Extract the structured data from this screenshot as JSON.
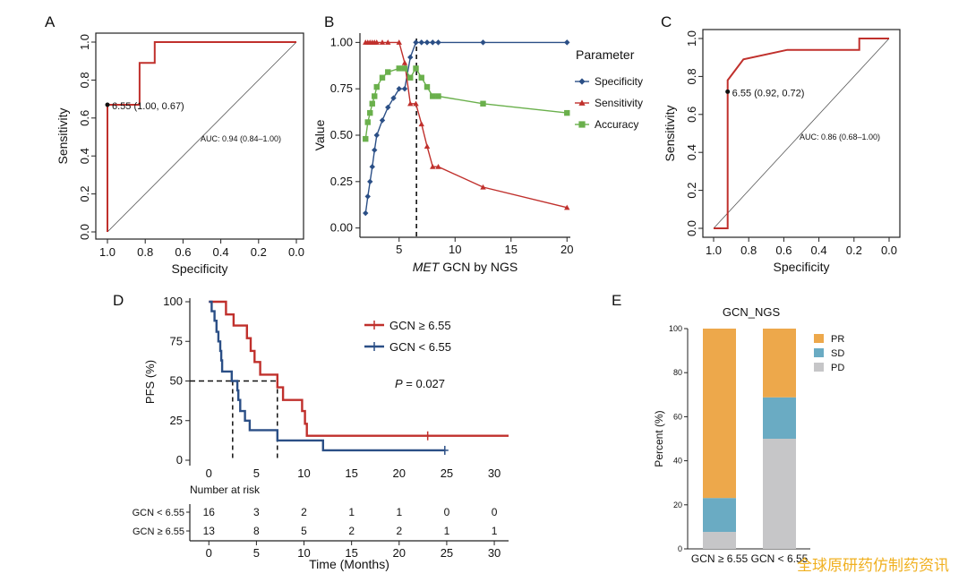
{
  "panel_labels": [
    "A",
    "B",
    "C",
    "D",
    "E"
  ],
  "colors": {
    "red": "#c0302c",
    "blue": "#2b4f86",
    "green": "#6ab04c",
    "pr": "#eda84b",
    "sd": "#6aabc3",
    "pd": "#c6c6c8",
    "risk_blue": "#2f5f9e",
    "risk_red": "#c0302c"
  },
  "watermark": "全球原研药仿制药资讯",
  "chart_data": [
    {
      "panel": "A",
      "type": "line",
      "xlabel": "Specificity",
      "ylabel": "Sensitivity",
      "xlim": [
        1.0,
        0.0
      ],
      "ylim": [
        0.0,
        1.0
      ],
      "xticks": [
        "1.0",
        "0.8",
        "0.6",
        "0.4",
        "0.2",
        "0.0"
      ],
      "yticks": [
        "0.0",
        "0.2",
        "0.4",
        "0.6",
        "0.8",
        "1.0"
      ],
      "roc_points": [
        [
          1.0,
          0.0
        ],
        [
          1.0,
          0.67
        ],
        [
          0.83,
          0.67
        ],
        [
          0.83,
          0.89
        ],
        [
          0.75,
          0.89
        ],
        [
          0.75,
          1.0
        ],
        [
          0.0,
          1.0
        ]
      ],
      "cutoff_point": [
        1.0,
        0.67
      ],
      "cutoff_label": "6.55 (1.00, 0.67)",
      "auc_label": "AUC: 0.94 (0.84–1.00)"
    },
    {
      "panel": "B",
      "type": "line",
      "xlabel_italic": "MET",
      "xlabel_rest": " GCN by NGS",
      "ylabel": "Value",
      "xlim": [
        1.5,
        20.3
      ],
      "ylim": [
        -0.05,
        1.05
      ],
      "xticks": [
        5,
        10,
        15,
        20
      ],
      "yticks": [
        "0.00",
        "0.25",
        "0.50",
        "0.75",
        "1.00"
      ],
      "cutoff_x": 6.55,
      "legend_title": "Parameter",
      "series": [
        {
          "name": "Specificity",
          "x": [
            2.0,
            2.2,
            2.4,
            2.6,
            2.8,
            3.0,
            3.5,
            4.0,
            4.5,
            5.0,
            5.5,
            6.0,
            6.5,
            7.0,
            7.5,
            8.0,
            8.5,
            12.5,
            20.0
          ],
          "y": [
            0.08,
            0.17,
            0.25,
            0.33,
            0.42,
            0.5,
            0.58,
            0.65,
            0.7,
            0.75,
            0.75,
            0.92,
            1.0,
            1.0,
            1.0,
            1.0,
            1.0,
            1.0,
            1.0
          ]
        },
        {
          "name": "Sensitivity",
          "x": [
            2.0,
            2.2,
            2.4,
            2.6,
            2.8,
            3.0,
            3.5,
            4.0,
            5.0,
            5.5,
            6.0,
            6.5,
            7.0,
            7.5,
            8.0,
            8.5,
            12.5,
            20.0
          ],
          "y": [
            1.0,
            1.0,
            1.0,
            1.0,
            1.0,
            1.0,
            1.0,
            1.0,
            1.0,
            0.89,
            0.67,
            0.67,
            0.56,
            0.44,
            0.33,
            0.33,
            0.22,
            0.11
          ]
        },
        {
          "name": "Accuracy",
          "x": [
            2.0,
            2.2,
            2.4,
            2.6,
            2.8,
            3.0,
            3.5,
            4.0,
            5.0,
            5.5,
            6.0,
            6.5,
            7.0,
            7.5,
            8.0,
            8.5,
            12.5,
            20.0
          ],
          "y": [
            0.48,
            0.57,
            0.62,
            0.67,
            0.71,
            0.76,
            0.81,
            0.84,
            0.86,
            0.86,
            0.81,
            0.86,
            0.81,
            0.76,
            0.71,
            0.71,
            0.67,
            0.62
          ]
        }
      ]
    },
    {
      "panel": "C",
      "type": "line",
      "xlabel": "Specificity",
      "ylabel": "Sensitivity",
      "xlim": [
        1.0,
        0.0
      ],
      "ylim": [
        0.0,
        1.0
      ],
      "xticks": [
        "1.0",
        "0.8",
        "0.6",
        "0.4",
        "0.2",
        "0.0"
      ],
      "yticks": [
        "0.0",
        "0.2",
        "0.4",
        "0.6",
        "0.8",
        "1.0"
      ],
      "roc_points": [
        [
          1.0,
          0.0
        ],
        [
          0.92,
          0.0
        ],
        [
          0.92,
          0.72
        ],
        [
          0.92,
          0.78
        ],
        [
          0.83,
          0.89
        ],
        [
          0.58,
          0.94
        ],
        [
          0.17,
          0.94
        ],
        [
          0.17,
          1.0
        ],
        [
          0.0,
          1.0
        ]
      ],
      "cutoff_point": [
        0.92,
        0.72
      ],
      "cutoff_label": "6.55 (0.92, 0.72)",
      "auc_label": "AUC: 0.86 (0.68–1.00)"
    },
    {
      "panel": "D",
      "type": "line",
      "xlabel": "Time (Months)",
      "ylabel": "PFS (%)",
      "xlim": [
        -2,
        31.5
      ],
      "ylim": [
        0,
        100
      ],
      "xticks": [
        0,
        5,
        10,
        15,
        20,
        25,
        30
      ],
      "yticks": [
        0,
        25,
        50,
        75,
        100
      ],
      "median_line": 50,
      "medians": [
        2.5,
        7.2
      ],
      "p_label_italic": "P",
      "p_label_rest": " = 0.027",
      "series": [
        {
          "name": "GCN ≥ 6.55",
          "steps": [
            [
              0,
              100
            ],
            [
              1.8,
              92
            ],
            [
              2.6,
              85
            ],
            [
              4.0,
              77
            ],
            [
              4.4,
              69
            ],
            [
              4.8,
              62
            ],
            [
              5.4,
              54
            ],
            [
              7.2,
              46
            ],
            [
              7.8,
              38
            ],
            [
              9.8,
              31
            ],
            [
              10.1,
              23
            ],
            [
              10.3,
              15.4
            ],
            [
              31.5,
              15.4
            ]
          ],
          "censor": [
            [
              23,
              15.4
            ]
          ]
        },
        {
          "name": "GCN < 6.55",
          "steps": [
            [
              0,
              100
            ],
            [
              0.3,
              94
            ],
            [
              0.6,
              88
            ],
            [
              0.8,
              81
            ],
            [
              1.0,
              75
            ],
            [
              1.2,
              69
            ],
            [
              1.3,
              63
            ],
            [
              1.4,
              56
            ],
            [
              2.4,
              50
            ],
            [
              3.0,
              44
            ],
            [
              3.1,
              38
            ],
            [
              3.3,
              31
            ],
            [
              3.8,
              25
            ],
            [
              4.3,
              19
            ],
            [
              7.2,
              12.5
            ],
            [
              12.0,
              6.25
            ],
            [
              24.8,
              6.25
            ]
          ],
          "censor": [
            [
              24.8,
              6.25
            ]
          ]
        }
      ],
      "risk_table": {
        "title": "Number at risk",
        "rows": [
          {
            "name": "GCN < 6.55",
            "values": [
              "16",
              "3",
              "2",
              "1",
              "1",
              "0",
              "0"
            ]
          },
          {
            "name": "GCN ≥ 6.55",
            "values": [
              "13",
              "8",
              "5",
              "2",
              "2",
              "1",
              "1"
            ]
          }
        ]
      }
    },
    {
      "panel": "E",
      "type": "bar",
      "title": "GCN_NGS",
      "ylabel": "Percent (%)",
      "ylim": [
        0,
        100
      ],
      "yticks": [
        0,
        20,
        40,
        60,
        80,
        100
      ],
      "categories": [
        "GCN ≥ 6.55",
        "GCN < 6.55"
      ],
      "series": [
        {
          "name": "PD",
          "values": [
            7.7,
            50.0
          ]
        },
        {
          "name": "SD",
          "values": [
            15.4,
            18.8
          ]
        },
        {
          "name": "PR",
          "values": [
            76.9,
            31.2
          ]
        }
      ],
      "legend_order": [
        "PR",
        "SD",
        "PD"
      ],
      "legend_placement": "right"
    }
  ]
}
